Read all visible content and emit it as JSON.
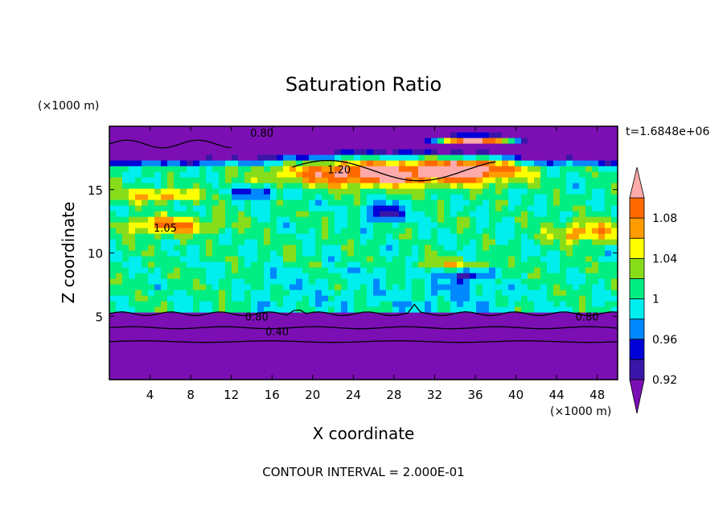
{
  "chart_data": {
    "type": "heatmap",
    "title": "Saturation Ratio",
    "xlabel": "X coordinate",
    "ylabel": "Z coordinate",
    "x_unit": "(×1000 m)",
    "y_unit": "(×1000 m)",
    "time_label": "t=1.6848e+06",
    "footer": "CONTOUR INTERVAL = 2.000E-01",
    "xlim": [
      0,
      50
    ],
    "ylim": [
      0,
      20
    ],
    "x_ticks": [
      "4",
      "8",
      "12",
      "16",
      "20",
      "24",
      "28",
      "32",
      "36",
      "40",
      "44",
      "48"
    ],
    "y_ticks": [
      "5",
      "10",
      "15"
    ],
    "x_tick_values": [
      4,
      8,
      12,
      16,
      20,
      24,
      28,
      32,
      36,
      40,
      44,
      48
    ],
    "y_tick_values": [
      5,
      10,
      15
    ],
    "colorbar": {
      "levels": [
        0.92,
        0.94,
        0.96,
        0.98,
        1.0,
        1.02,
        1.04,
        1.06,
        1.08,
        1.1
      ],
      "labels": [
        "0.92",
        "0.96",
        "1",
        "1.04",
        "1.08"
      ],
      "label_values": [
        0.92,
        0.96,
        1.0,
        1.04,
        1.08
      ],
      "colors": [
        "#7b0fb4",
        "#3a16a8",
        "#0000d8",
        "#0088ff",
        "#00eeee",
        "#00ee82",
        "#88dd1a",
        "#ffff00",
        "#ff9c00",
        "#ff6a00",
        "#ee1111",
        "#ffaaaa"
      ]
    },
    "contour_labels": [
      {
        "text": "0.80",
        "x": 15.0,
        "y": 19.5
      },
      {
        "text": "1.20",
        "x": 22.6,
        "y": 16.6
      },
      {
        "text": "0.80",
        "x": 14.5,
        "y": 5.0
      },
      {
        "text": "0.40",
        "x": 16.5,
        "y": 3.8
      },
      {
        "text": "0.80",
        "x": 47.0,
        "y": 5.0
      },
      {
        "text": "1.05",
        "x": 5.5,
        "y": 12.0
      }
    ]
  }
}
